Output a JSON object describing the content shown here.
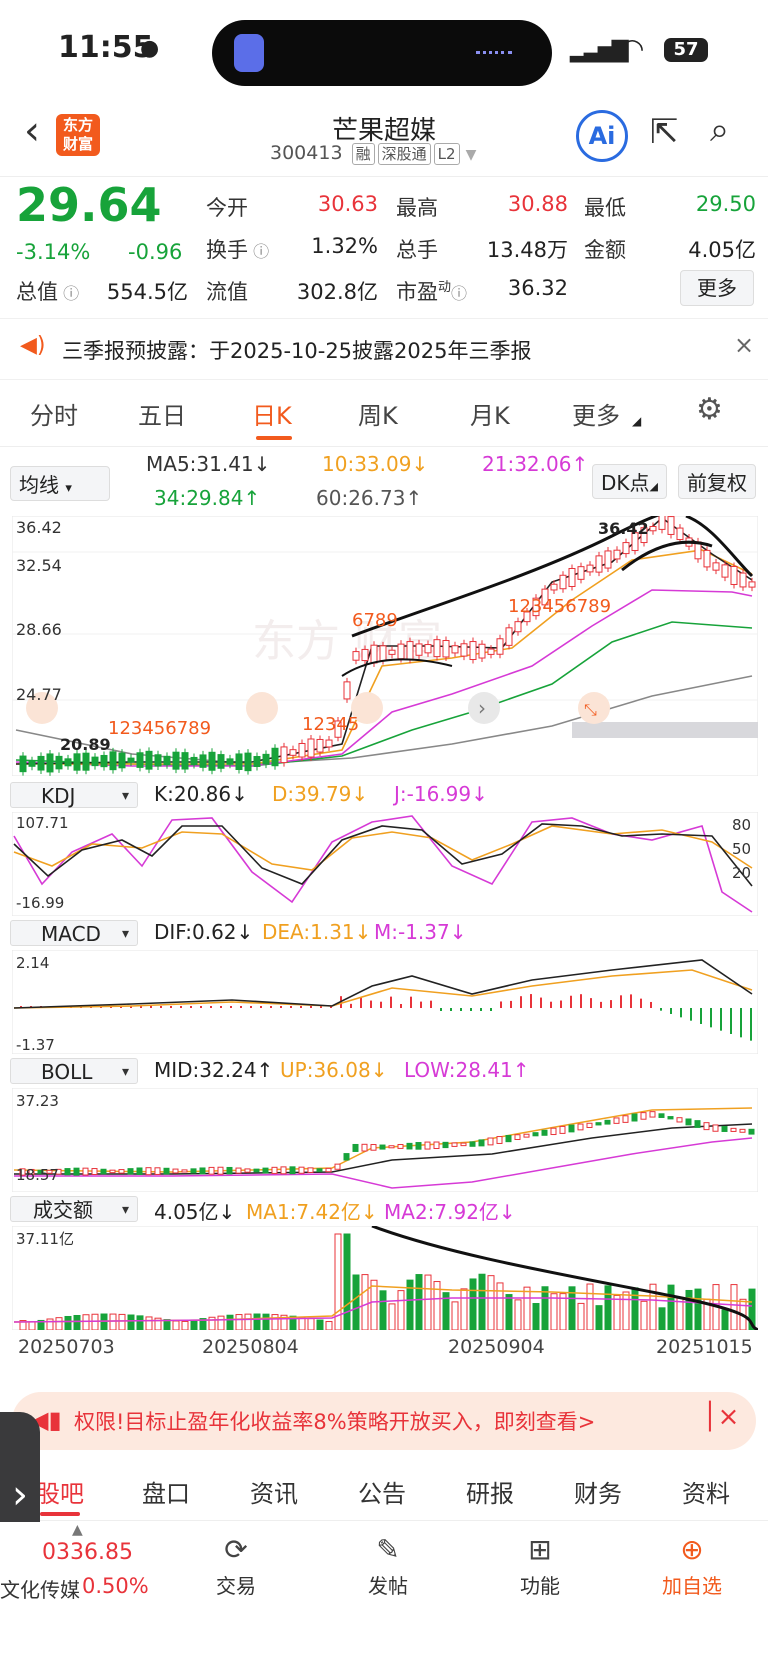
{
  "status": {
    "time": "11:55",
    "battery": "57"
  },
  "header": {
    "title": "芒果超媒",
    "code": "300413",
    "tags": [
      "融",
      "深股通",
      "L2"
    ],
    "logo_text": "东方\n财富",
    "ai_label": "Ai"
  },
  "quote": {
    "price": "29.64",
    "pct": "-3.14%",
    "chg": "-0.96",
    "open_label": "今开",
    "open": "30.63",
    "high_label": "最高",
    "high": "30.88",
    "low_label": "最低",
    "low": "29.50",
    "turnover_label": "换手",
    "turnover": "1.32%",
    "volume_label": "总手",
    "volume": "13.48万",
    "amount_label": "金额",
    "amount": "4.05亿",
    "mktcap_label": "总值",
    "mktcap": "554.5亿",
    "float_label": "流值",
    "float": "302.8亿",
    "pe_label": "市盈",
    "pe_sup": "动",
    "pe": "36.32",
    "more_label": "更多"
  },
  "notice": {
    "text": "三季报预披露：于2025-10-25披露2025年三季报"
  },
  "tabs": [
    "分时",
    "五日",
    "日K",
    "周K",
    "月K",
    "更多"
  ],
  "active_tab": 2,
  "ma": {
    "selector": "均线",
    "ma5": "MA5:31.41↓",
    "ma10": "10:33.09↓",
    "ma21": "21:32.06↑",
    "ma34": "34:29.84↑",
    "ma60": "60:26.73↑",
    "dk_label": "DK点",
    "fq_label": "前复权"
  },
  "kline": {
    "y_labels": [
      "36.42",
      "32.54",
      "28.66",
      "24.77"
    ],
    "high_mark": "36.42",
    "low_mark": "20.89",
    "markers_left": "123456789",
    "markers_mid": "12345",
    "markers_a": "6789",
    "markers_b": "123456789"
  },
  "kdj": {
    "selector": "KDJ",
    "k": "K:20.86↓",
    "d": "D:39.79↓",
    "j": "J:-16.99↓",
    "ymax": "107.71",
    "ymin": "-16.99",
    "levels": [
      "80",
      "50",
      "20"
    ]
  },
  "macd": {
    "selector": "MACD",
    "dif": "DIF:0.62↓",
    "dea": "DEA:1.31↓",
    "m": "M:-1.37↓",
    "ymax": "2.14",
    "ymin": "-1.37"
  },
  "boll": {
    "selector": "BOLL",
    "mid": "MID:32.24↑",
    "up": "UP:36.08↓",
    "low": "LOW:28.41↑",
    "ymax": "37.23",
    "ymin": "18.57"
  },
  "vol": {
    "selector": "成交额",
    "val": "4.05亿↓",
    "ma1": "MA1:7.42亿↓",
    "ma2": "MA2:7.92亿↓",
    "ymax": "37.11亿"
  },
  "dates": [
    "20250703",
    "20250804",
    "20250904",
    "20251015"
  ],
  "promo": {
    "text": "权限!目标止盈年化收益率8%策略开放买入，即刻查看>"
  },
  "bottom_tabs": [
    "股吧",
    "盘口",
    "资讯",
    "公告",
    "研报",
    "财务",
    "资料"
  ],
  "toolbar": {
    "index_value": "0336.85",
    "index_name": "文化传媒",
    "index_pct": "0.50%",
    "trade": "交易",
    "post": "发帖",
    "func": "功能",
    "add": "加自选"
  },
  "colors": {
    "up": "#e8333a",
    "down": "#17a33a",
    "accent": "#f25a1d",
    "ma10": "#f0a020",
    "ma21": "#d63ad6"
  }
}
